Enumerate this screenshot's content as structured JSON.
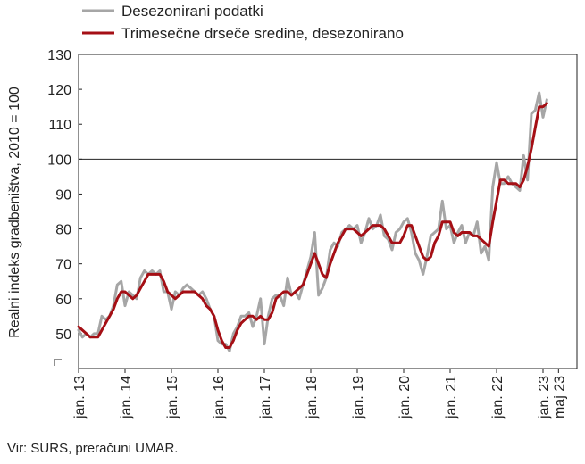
{
  "chart_data": {
    "type": "line",
    "title": "",
    "ylabel": "Realni indeks gradbeništva, 2010 = 100",
    "ylim": [
      40,
      130
    ],
    "y_ticks": [
      "50",
      "60",
      "70",
      "80",
      "90",
      "100",
      "110",
      "120",
      "130"
    ],
    "reference_line": 100,
    "legend_position": "top-left",
    "x_tick_labels": [
      "jan. 13",
      "jan. 14",
      "jan. 15",
      "jan. 16",
      "jan. 17",
      "jan. 18",
      "jan. 19",
      "jan. 20",
      "jan. 21",
      "jan. 22",
      "jan. 23",
      "maj 23"
    ],
    "x_start": "2013-01",
    "series": [
      {
        "name": "Desezonirani podatki",
        "color": "#a6a6a6",
        "values": [
          51,
          49,
          50,
          49,
          50,
          50,
          55,
          54,
          55,
          58,
          64,
          65,
          58,
          62,
          61,
          60,
          66,
          68,
          67,
          68,
          67,
          68,
          62,
          62,
          57,
          62,
          61,
          63,
          64,
          63,
          62,
          61,
          62,
          60,
          57,
          55,
          48,
          47,
          47,
          45,
          50,
          52,
          55,
          55,
          56,
          52,
          55,
          60,
          47,
          55,
          60,
          61,
          61,
          58,
          66,
          61,
          62,
          60,
          64,
          68,
          72,
          79,
          61,
          63,
          66,
          74,
          76,
          75,
          79,
          80,
          81,
          80,
          81,
          76,
          79,
          83,
          80,
          81,
          84,
          78,
          77,
          74,
          79,
          80,
          82,
          83,
          79,
          73,
          71,
          67,
          72,
          78,
          79,
          80,
          88,
          80,
          81,
          76,
          79,
          81,
          76,
          79,
          78,
          82,
          73,
          75,
          71,
          92,
          99,
          93,
          93,
          95,
          93,
          92,
          91,
          101,
          94,
          113,
          114,
          119,
          112,
          117
        ],
        "grid": false
      },
      {
        "name": "Trimesečne drseče sredine, desezonirano",
        "color": "#a50f15",
        "values": [
          52,
          51,
          50,
          49,
          49,
          49,
          51,
          53,
          55,
          57,
          60,
          62,
          62,
          61,
          60,
          61,
          63,
          65,
          67,
          67,
          67,
          67,
          65,
          62,
          61,
          60,
          61,
          62,
          62,
          62,
          62,
          61,
          60,
          58,
          57,
          55,
          51,
          48,
          46,
          46,
          48,
          51,
          53,
          54,
          55,
          55,
          54,
          55,
          54,
          54,
          56,
          60,
          61,
          62,
          62,
          61,
          62,
          63,
          64,
          67,
          70,
          73,
          70,
          67,
          66,
          70,
          73,
          76,
          78,
          80,
          80,
          80,
          79,
          78,
          79,
          80,
          81,
          81,
          81,
          80,
          78,
          76,
          76,
          76,
          78,
          81,
          81,
          78,
          75,
          72,
          71,
          72,
          76,
          78,
          82,
          82,
          82,
          79,
          78,
          79,
          79,
          79,
          78,
          78,
          77,
          76,
          75,
          82,
          88,
          94,
          94,
          93,
          93,
          93,
          92,
          94,
          98,
          103,
          109,
          115,
          115,
          116
        ],
        "grid": false
      }
    ],
    "grid": false
  },
  "source_text": "Vir: SURS, preračuni UMAR."
}
